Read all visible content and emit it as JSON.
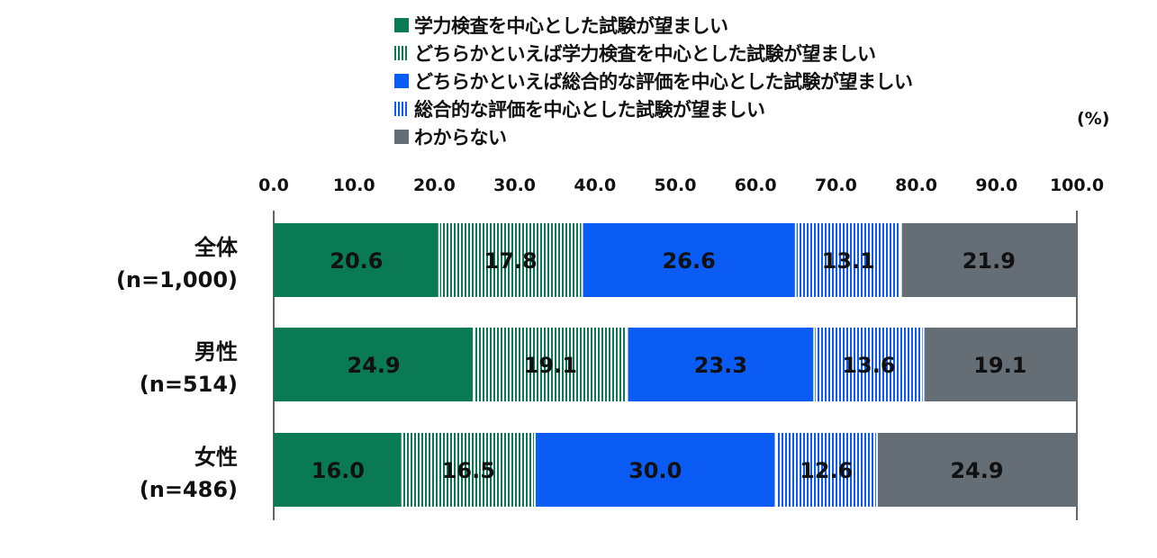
{
  "unit_label": "(%)",
  "colors": {
    "academic": "#0a7a55",
    "lean_academic_stripe": "#0a7a55",
    "lean_comprehensive_stripe": "#0a5cf5",
    "comprehensive": "#0a5cf5",
    "unknown": "#666e75"
  },
  "chart_data": {
    "type": "bar",
    "orientation": "horizontal",
    "stacked": true,
    "xlim": [
      0,
      100
    ],
    "xticks": [
      "0.0",
      "10.0",
      "20.0",
      "30.0",
      "40.0",
      "50.0",
      "60.0",
      "70.0",
      "80.0",
      "90.0",
      "100.0"
    ],
    "categories": [
      {
        "name": "全体",
        "n": "(n=1,000)"
      },
      {
        "name": "男性",
        "n": "(n=514)"
      },
      {
        "name": "女性",
        "n": "(n=486)"
      }
    ],
    "series": [
      {
        "name": "学力検査を中心とした試験が望ましい",
        "pattern": "solid-green",
        "values": [
          20.6,
          24.9,
          16.0
        ]
      },
      {
        "name": "どちらかといえば学力検査を中心とした試験が望ましい",
        "pattern": "striped-green",
        "values": [
          17.8,
          19.1,
          16.5
        ]
      },
      {
        "name": "どちらかといえば総合的な評価を中心とした試験が望ましい",
        "pattern": "solid-blue",
        "values": [
          26.6,
          23.3,
          30.0
        ]
      },
      {
        "name": "総合的な評価を中心とした試験が望ましい",
        "pattern": "striped-blue",
        "values": [
          13.1,
          13.6,
          12.6
        ]
      },
      {
        "name": "わからない",
        "pattern": "solid-gray",
        "values": [
          21.9,
          19.1,
          24.9
        ]
      }
    ],
    "legend_position": "top",
    "grid": false
  }
}
